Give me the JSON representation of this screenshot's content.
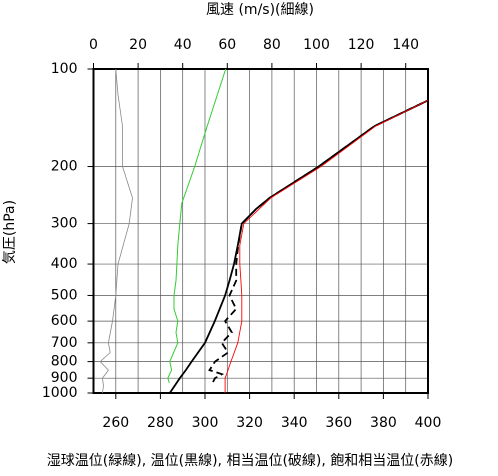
{
  "chart_data": {
    "type": "line",
    "title": "風速 (m/s)(細線)",
    "y_label": "気圧(hPa)",
    "caption": "湿球温位(緑線), 温位(黒線), 相当温位(破線), 飽和相当温位(赤線)",
    "ylog": true,
    "ylim": [
      1000,
      100
    ],
    "yticks": [
      100,
      200,
      300,
      400,
      500,
      600,
      700,
      800,
      900,
      1000
    ],
    "xlim": [
      250,
      400
    ],
    "xticks": [
      260,
      280,
      300,
      320,
      340,
      360,
      380,
      400
    ],
    "x_minor_gridlines": [
      250,
      270,
      290,
      310,
      330,
      350,
      370,
      390
    ],
    "x2lim": [
      0,
      150
    ],
    "x2ticks": [
      0,
      20,
      40,
      60,
      80,
      100,
      120,
      140
    ],
    "grid": true,
    "series": [
      {
        "name": "風速",
        "color": "#888888",
        "axis": "x2",
        "width": 0.8,
        "pressure": [
          1000,
          950,
          900,
          850,
          800,
          750,
          700,
          600,
          500,
          400,
          300,
          250,
          200,
          150,
          120,
          100
        ],
        "values": [
          4,
          4.5,
          4,
          6.7,
          3,
          7.5,
          6.7,
          8.5,
          10,
          11,
          16,
          17.5,
          13,
          13,
          11,
          10
        ]
      },
      {
        "name": "湿球温位",
        "color": "#33cc33",
        "width": 1,
        "pressure": [
          930,
          900,
          850,
          800,
          700,
          650,
          600,
          550,
          500,
          450,
          400,
          350,
          300,
          260,
          200,
          150,
          100
        ],
        "values": [
          284,
          283.3,
          285,
          284.2,
          287.8,
          287,
          287.8,
          286.1,
          286.1,
          287,
          287.4,
          287.8,
          288.7,
          289.6,
          295.4,
          301,
          309.3
        ]
      },
      {
        "name": "温位",
        "color": "#000000",
        "width": 1.8,
        "pressure": [
          1000,
          900,
          850,
          800,
          700,
          600,
          500,
          450,
          400,
          350,
          300,
          270,
          250,
          200,
          150,
          125
        ],
        "values": [
          284.2,
          288.7,
          291.4,
          294,
          300,
          304.4,
          309,
          311,
          313,
          314.7,
          316.5,
          323,
          329,
          351,
          376,
          400
        ]
      },
      {
        "name": "相当温位",
        "color": "#000000",
        "width": 1.8,
        "dashed": true,
        "pressure": [
          925,
          900,
          875,
          850,
          800,
          750,
          700,
          650,
          600,
          550,
          500,
          450,
          400,
          350,
          300,
          270,
          250,
          200,
          150,
          125
        ],
        "values": [
          303.6,
          304.5,
          307.6,
          302,
          304.5,
          310.3,
          307.5,
          312,
          309,
          314,
          311,
          314,
          314,
          314.9,
          316.5,
          323,
          329,
          351,
          376,
          400
        ]
      },
      {
        "name": "飽和相当温位",
        "color": "#ff0000",
        "width": 0.9,
        "pressure": [
          1000,
          900,
          850,
          800,
          700,
          600,
          500,
          450,
          400,
          350,
          300,
          250,
          200,
          150,
          125
        ],
        "values": [
          309,
          309,
          310.3,
          311.6,
          314.7,
          316.5,
          316.5,
          316.1,
          315.6,
          315.6,
          317.4,
          329.5,
          352,
          376.5,
          400
        ]
      }
    ]
  }
}
